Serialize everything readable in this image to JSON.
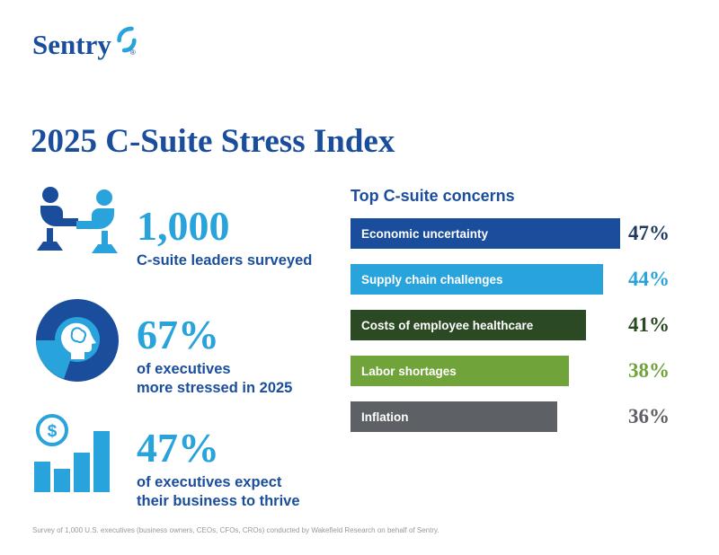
{
  "brand": {
    "name": "Sentry",
    "registered": "®"
  },
  "title": "2025 C-Suite Stress Index",
  "stats": [
    {
      "icon": "people-meeting-icon",
      "value": "1,000",
      "lines": [
        "C-suite leaders surveyed"
      ]
    },
    {
      "icon": "brain-pie-icon",
      "value": "67%",
      "lines": [
        "of executives",
        "more stressed in 2025"
      ]
    },
    {
      "icon": "dollar-bar-chart-icon",
      "value": "47%",
      "lines": [
        "of executives expect",
        "their business to thrive"
      ]
    }
  ],
  "chart_data": {
    "type": "bar",
    "orientation": "horizontal",
    "title": "Top C-suite concerns",
    "categories": [
      "Economic uncertainty",
      "Supply chain challenges",
      "Costs of employee healthcare",
      "Labor shortages",
      "Inflation"
    ],
    "values": [
      47,
      44,
      41,
      38,
      36
    ],
    "value_labels": [
      "47%",
      "44%",
      "41%",
      "38%",
      "36%"
    ],
    "bar_colors": [
      "#1a4e9c",
      "#29a3dc",
      "#2b4a24",
      "#70a33a",
      "#5d6064"
    ],
    "value_colors": [
      "#1f3a5f",
      "#29a3dc",
      "#2b4a24",
      "#70a33a",
      "#5d6064"
    ],
    "xlim": [
      0,
      47
    ],
    "grid": false,
    "legend": "none"
  },
  "colors": {
    "dark_blue": "#1a4e9c",
    "light_blue": "#29a3dc",
    "dark_green": "#2b4a24",
    "green": "#70a33a",
    "gray": "#5d6064",
    "background": "#ffffff"
  },
  "footnote": "Survey of 1,000 U.S. executives (business owners, CEOs, CFOs, CROs) conducted by Wakefield Research on behalf of Sentry."
}
